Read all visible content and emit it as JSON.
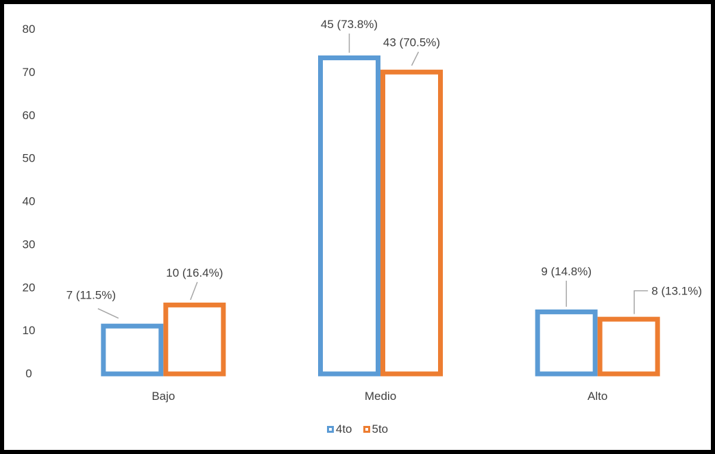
{
  "chart_data": {
    "type": "bar",
    "categories": [
      "Bajo",
      "Medio",
      "Alto"
    ],
    "series": [
      {
        "name": "4to",
        "values": [
          11.5,
          73.8,
          14.8
        ],
        "labels": [
          "7 (11.5%)",
          "45 (73.8%)",
          "9 (14.8%)"
        ],
        "color": "#5B9BD5"
      },
      {
        "name": "5to",
        "values": [
          16.4,
          70.5,
          13.1
        ],
        "labels": [
          "10 (16.4%)",
          "43 (70.5%)",
          "8 (13.1%)"
        ],
        "color": "#ED7D31"
      }
    ],
    "ylim": [
      0,
      80
    ],
    "yticks": [
      0,
      10,
      20,
      30,
      40,
      50,
      60,
      70,
      80
    ],
    "bar_style": "outline",
    "grid": false,
    "legend_position": "bottom",
    "leader_line_color": "#A6A6A6"
  }
}
